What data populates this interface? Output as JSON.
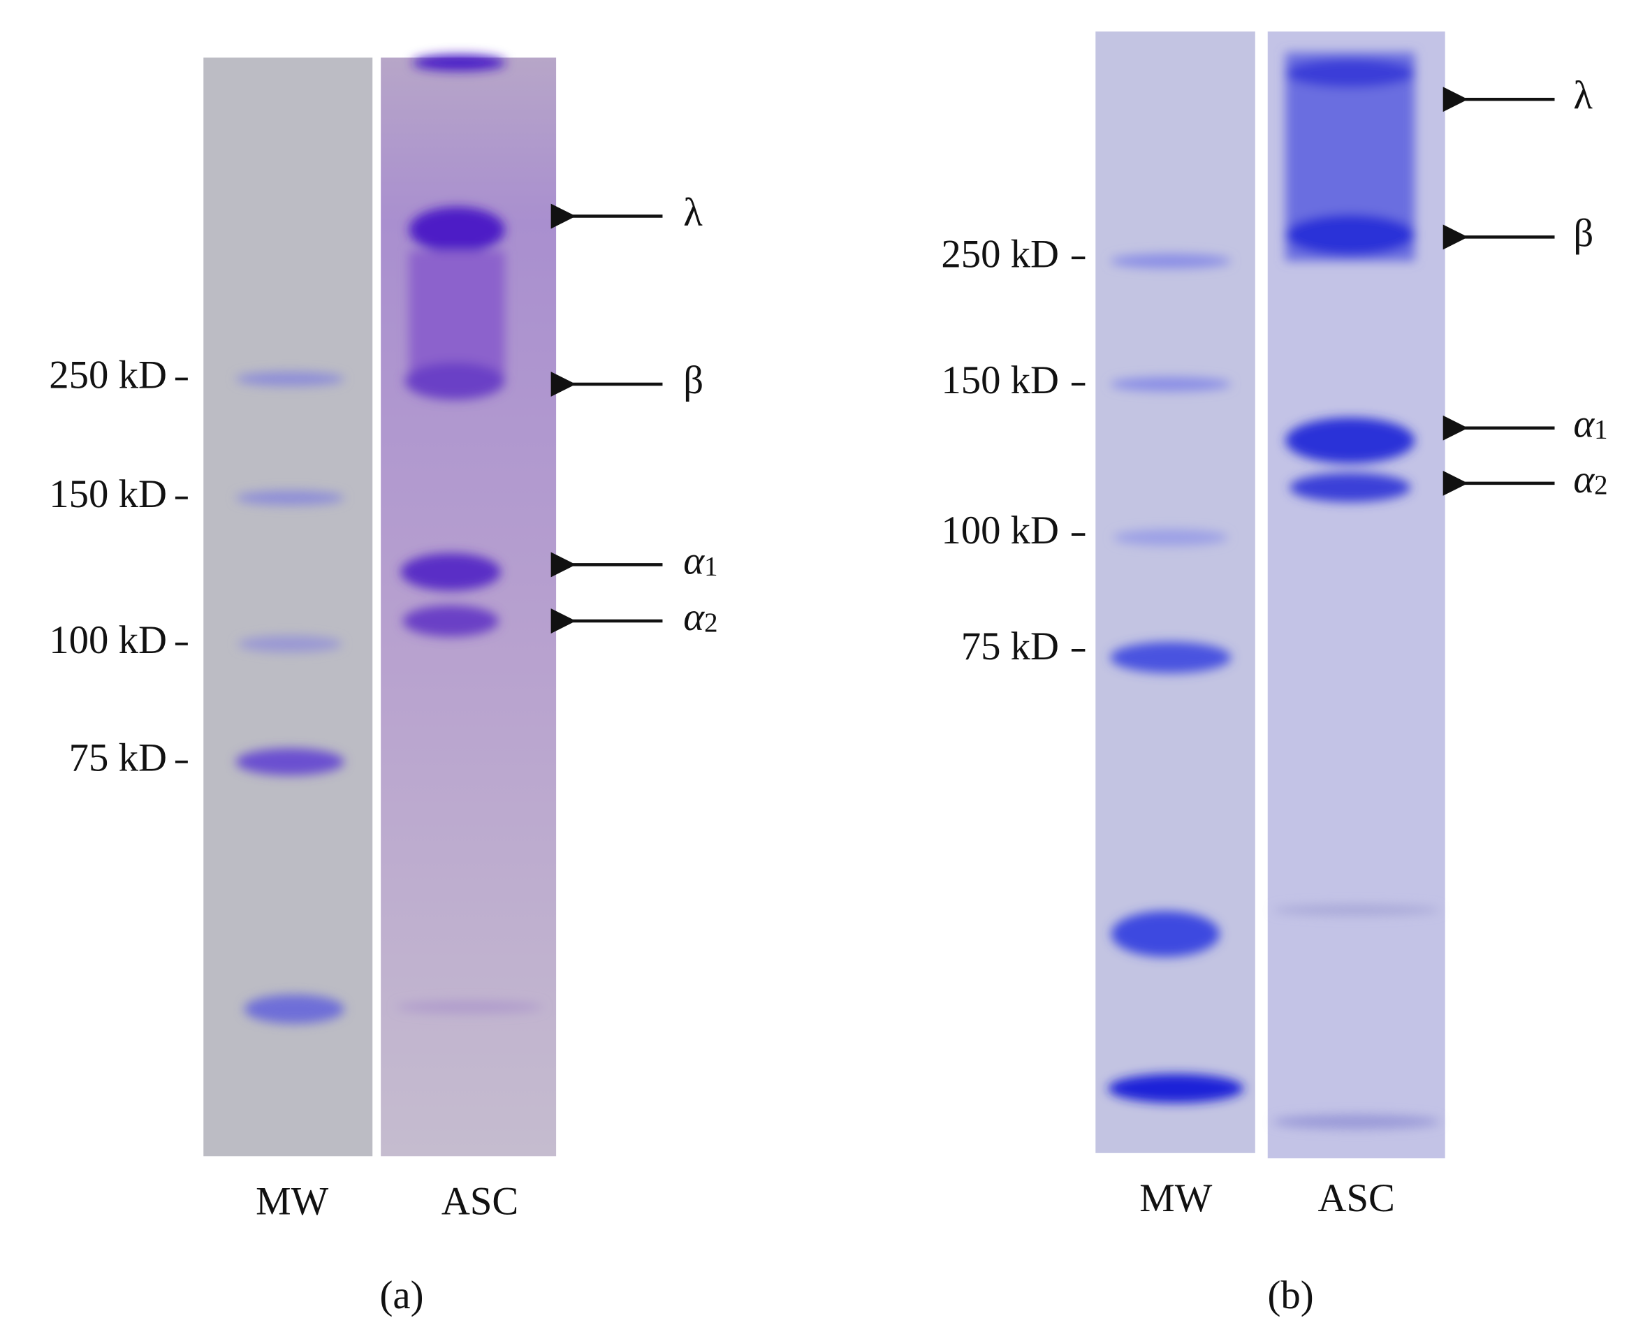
{
  "panels": [
    {
      "label": "(a)",
      "markers": [
        "250 kD",
        "150 kD",
        "100 kD",
        "75 kD"
      ],
      "bands": [
        {
          "symbol": "λ"
        },
        {
          "symbol": "β"
        },
        {
          "symbol": "α",
          "subscript": "1"
        },
        {
          "symbol": "α",
          "subscript": "2"
        }
      ],
      "lanes": [
        "MW",
        "ASC"
      ]
    },
    {
      "label": "(b)",
      "markers": [
        "250 kD",
        "150 kD",
        "100 kD",
        "75 kD"
      ],
      "bands": [
        {
          "symbol": "λ"
        },
        {
          "symbol": "β"
        },
        {
          "symbol": "α",
          "subscript": "1"
        },
        {
          "symbol": "α",
          "subscript": "2"
        }
      ],
      "lanes": [
        "MW",
        "ASC"
      ]
    }
  ]
}
